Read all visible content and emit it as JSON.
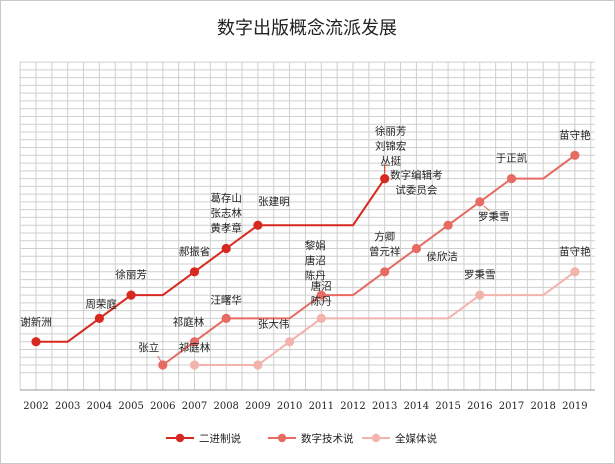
{
  "chart_data": {
    "type": "line",
    "title": "数字出版概念流派发展",
    "x": [
      "2002",
      "2003",
      "2004",
      "2005",
      "2006",
      "2007",
      "2008",
      "2009",
      "2010",
      "2011",
      "2012",
      "2013",
      "2014",
      "2015",
      "2016",
      "2017",
      "2018",
      "2019"
    ],
    "series": [
      {
        "name": "二进制说",
        "color": "#d7291f",
        "line": [
          [
            2002,
            1
          ],
          [
            2003,
            1
          ],
          [
            2004,
            2
          ],
          [
            2005,
            3
          ],
          [
            2006,
            3
          ],
          [
            2007,
            4
          ],
          [
            2008,
            5
          ],
          [
            2009,
            6
          ],
          [
            2010,
            6
          ],
          [
            2011,
            6
          ],
          [
            2012,
            6
          ],
          [
            2013,
            8
          ]
        ],
        "points": [
          2002,
          2004,
          2005,
          2007,
          2008,
          2009,
          2013
        ]
      },
      {
        "name": "数字技术说",
        "color": "#e66b62",
        "line": [
          [
            2006,
            0
          ],
          [
            2007,
            1
          ],
          [
            2008,
            2
          ],
          [
            2009,
            2
          ],
          [
            2010,
            2
          ],
          [
            2011,
            3
          ],
          [
            2012,
            3
          ],
          [
            2013,
            4
          ],
          [
            2014,
            5
          ],
          [
            2015,
            6
          ],
          [
            2016,
            7
          ],
          [
            2017,
            8
          ],
          [
            2018,
            8
          ],
          [
            2019,
            9
          ]
        ],
        "points": [
          2006,
          2007,
          2008,
          2011,
          2013,
          2014,
          2015,
          2016,
          2017,
          2019
        ]
      },
      {
        "name": "全媒体说",
        "color": "#f2b3ad",
        "line": [
          [
            2007,
            0
          ],
          [
            2008,
            0
          ],
          [
            2009,
            0
          ],
          [
            2010,
            1
          ],
          [
            2011,
            2
          ],
          [
            2012,
            2
          ],
          [
            2013,
            2
          ],
          [
            2014,
            2
          ],
          [
            2015,
            2
          ],
          [
            2016,
            3
          ],
          [
            2017,
            3
          ],
          [
            2018,
            3
          ],
          [
            2019,
            4
          ]
        ],
        "points": [
          2007,
          2009,
          2010,
          2011,
          2016,
          2019
        ]
      }
    ],
    "annotations": [
      {
        "series": 0,
        "x": 2002,
        "lines": [
          "谢新洲"
        ]
      },
      {
        "series": 0,
        "x": 2004,
        "lines": [
          "周荣庭"
        ]
      },
      {
        "series": 0,
        "x": 2005,
        "lines": [
          "徐丽芳"
        ]
      },
      {
        "series": 0,
        "x": 2007,
        "lines": [
          "郝振省"
        ]
      },
      {
        "series": 0,
        "x": 2008,
        "lines": [
          "葛存山",
          "张志林",
          "黄孝章"
        ]
      },
      {
        "series": 0,
        "x": 2009,
        "lines": [
          "张建明"
        ]
      },
      {
        "series": 0,
        "x": 2013,
        "lines": [
          "徐丽芳",
          "刘锦宏",
          "丛挺"
        ]
      },
      {
        "series": 1,
        "x": 2006,
        "lines": [
          "张立"
        ]
      },
      {
        "series": 1,
        "x": 2007,
        "lines": [
          "祁庭林"
        ]
      },
      {
        "series": 1,
        "x": 2008,
        "lines": [
          "汪曙华"
        ]
      },
      {
        "series": 1,
        "x": 2011,
        "lines": [
          "黎娟",
          "唐沼",
          "陈丹"
        ]
      },
      {
        "series": 1,
        "x": 2013,
        "lines": [
          "方卿",
          "曾元祥"
        ]
      },
      {
        "series": 1,
        "x": 2014,
        "lines": [
          "数字编辑考",
          "试委员会"
        ]
      },
      {
        "series": 1,
        "x": 2015,
        "lines": [
          "侯欣洁"
        ]
      },
      {
        "series": 1,
        "x": 2016,
        "lines": [
          "罗秉雪"
        ]
      },
      {
        "series": 1,
        "x": 2017,
        "lines": [
          "于正凯"
        ]
      },
      {
        "series": 1,
        "x": 2019,
        "lines": [
          "苗守艳"
        ]
      },
      {
        "series": 2,
        "x": 2007,
        "lines": [
          "祁庭林"
        ]
      },
      {
        "series": 2,
        "x": 2010,
        "lines": [
          "张大伟"
        ]
      },
      {
        "series": 2,
        "x": 2011,
        "lines": [
          "唐沼",
          "陈丹"
        ]
      },
      {
        "series": 2,
        "x": 2016,
        "lines": [
          "罗秉雪"
        ]
      },
      {
        "series": 2,
        "x": 2019,
        "lines": [
          "苗守艳"
        ]
      }
    ],
    "grid": true,
    "legend": "bottom"
  }
}
